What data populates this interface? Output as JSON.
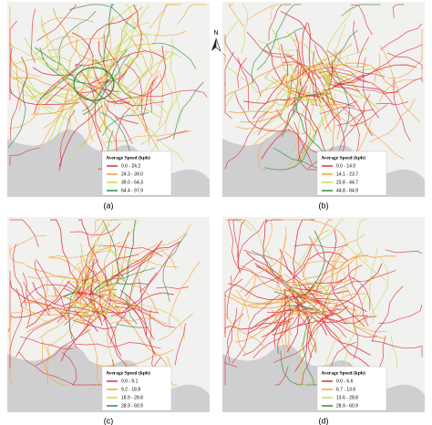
{
  "compass": "N",
  "panels": [
    {
      "label": "(a)",
      "legend_title": "Average Speed (kph)",
      "legend": [
        {
          "label": "0.0 - 24.2",
          "color": "#e0303a"
        },
        {
          "label": "24.3 - 39.0",
          "color": "#f2a23a"
        },
        {
          "label": "39.0 - 64.3",
          "color": "#c8d84a"
        },
        {
          "label": "64.4 - 97.9",
          "color": "#2e8b3a"
        }
      ]
    },
    {
      "label": "(b)",
      "legend_title": "Average Speed (kph)",
      "legend": [
        {
          "label": "0.0 - 14.0",
          "color": "#e0303a"
        },
        {
          "label": "14.1 - 23.7",
          "color": "#f2a23a"
        },
        {
          "label": "23.8 - 44.7",
          "color": "#c8d84a"
        },
        {
          "label": "44.8 - 84.9",
          "color": "#2e8b3a"
        }
      ]
    },
    {
      "label": "(c)",
      "legend_title": "Average Speed (kph)",
      "legend": [
        {
          "label": "0.0 - 9.1",
          "color": "#e0303a"
        },
        {
          "label": "9.2 - 18.8",
          "color": "#f2a23a"
        },
        {
          "label": "18.9 - 28.8",
          "color": "#c8d84a"
        },
        {
          "label": "28.9 - 60.9",
          "color": "#2e8b3a"
        }
      ]
    },
    {
      "label": "(d)",
      "legend_title": "Average Speed (kph)",
      "legend": [
        {
          "label": "0.0 - 6.6",
          "color": "#e0303a"
        },
        {
          "label": "6.7 - 13.6",
          "color": "#f2a23a"
        },
        {
          "label": "13.6 - 28.8",
          "color": "#c8d84a"
        },
        {
          "label": "28.9 - 60.9",
          "color": "#2e8b3a"
        }
      ]
    }
  ]
}
